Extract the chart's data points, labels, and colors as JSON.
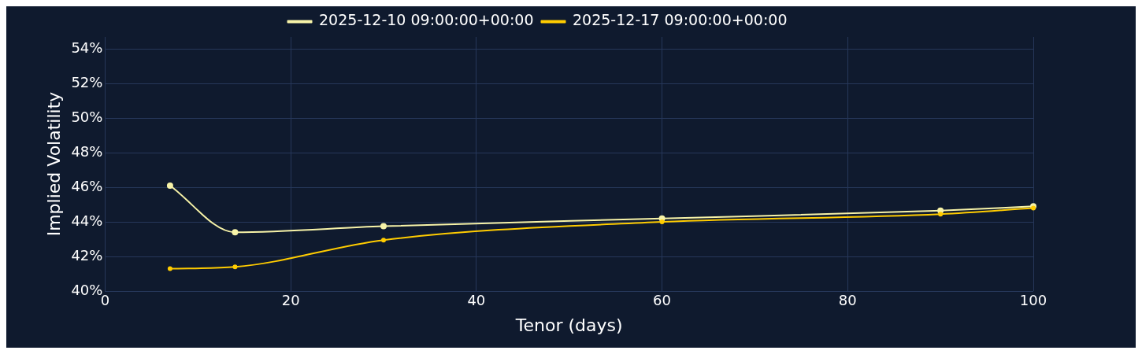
{
  "chart_data": {
    "type": "line",
    "xlabel": "Tenor (days)",
    "ylabel": "Implied Volatility",
    "x": [
      7,
      14,
      30,
      60,
      90,
      100
    ],
    "series": [
      {
        "name": "2025-12-10 09:00:00+00:00",
        "color": "#f7f3a8",
        "values": [
          46.1,
          43.4,
          43.75,
          44.2,
          44.65,
          44.9
        ]
      },
      {
        "name": "2025-12-17 09:00:00+00:00",
        "color": "#ffcc00",
        "values": [
          41.3,
          41.4,
          42.95,
          44.0,
          44.45,
          44.8
        ]
      }
    ],
    "xlim": [
      0,
      100
    ],
    "xticks": [
      0,
      20,
      40,
      60,
      80,
      100
    ],
    "ylim": [
      40,
      54.7
    ],
    "yticks": [
      {
        "value": 40,
        "label": "40%"
      },
      {
        "value": 42,
        "label": "42%"
      },
      {
        "value": 44,
        "label": "44%"
      },
      {
        "value": 46,
        "label": "46%"
      },
      {
        "value": 48,
        "label": "48%"
      },
      {
        "value": 50,
        "label": "50%"
      },
      {
        "value": 52,
        "label": "52%"
      },
      {
        "value": 54,
        "label": "54%"
      }
    ],
    "grid": true,
    "legend": "top",
    "marker": "circle",
    "line_style": "solid"
  }
}
